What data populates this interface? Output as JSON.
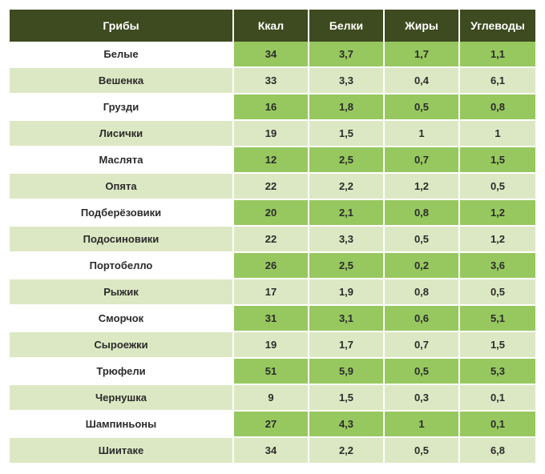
{
  "table": {
    "type": "table",
    "header_bg": "#3e4a1f",
    "header_fg": "#ffffff",
    "name_cell_bg": [
      "#ffffff",
      "#dce8c3"
    ],
    "val_cell_bg": [
      "#97c85f",
      "#dce8c3"
    ],
    "cell_fg": "#2b2b2b",
    "border_color": "#ffffff",
    "header_fontsize": 14,
    "cell_fontsize": 13,
    "columns": [
      "Грибы",
      "Ккал",
      "Белки",
      "Жиры",
      "Углеводы"
    ],
    "rows": [
      [
        "Белые",
        "34",
        "3,7",
        "1,7",
        "1,1"
      ],
      [
        "Вешенка",
        "33",
        "3,3",
        "0,4",
        "6,1"
      ],
      [
        "Грузди",
        "16",
        "1,8",
        "0,5",
        "0,8"
      ],
      [
        "Лисички",
        "19",
        "1,5",
        "1",
        "1"
      ],
      [
        "Маслята",
        "12",
        "2,5",
        "0,7",
        "1,5"
      ],
      [
        "Опята",
        "22",
        "2,2",
        "1,2",
        "0,5"
      ],
      [
        "Подберёзовики",
        "20",
        "2,1",
        "0,8",
        "1,2"
      ],
      [
        "Подосиновики",
        "22",
        "3,3",
        "0,5",
        "1,2"
      ],
      [
        "Портобелло",
        "26",
        "2,5",
        "0,2",
        "3,6"
      ],
      [
        "Рыжик",
        "17",
        "1,9",
        "0,8",
        "0,5"
      ],
      [
        "Сморчок",
        "31",
        "3,1",
        "0,6",
        "5,1"
      ],
      [
        "Сыроежки",
        "19",
        "1,7",
        "0,7",
        "1,5"
      ],
      [
        "Трюфели",
        "51",
        "5,9",
        "0,5",
        "5,3"
      ],
      [
        "Чернушка",
        "9",
        "1,5",
        "0,3",
        "0,1"
      ],
      [
        "Шампиньоны",
        "27",
        "4,3",
        "1",
        "0,1"
      ],
      [
        "Шиитаке",
        "34",
        "2,2",
        "0,5",
        "6,8"
      ]
    ]
  }
}
